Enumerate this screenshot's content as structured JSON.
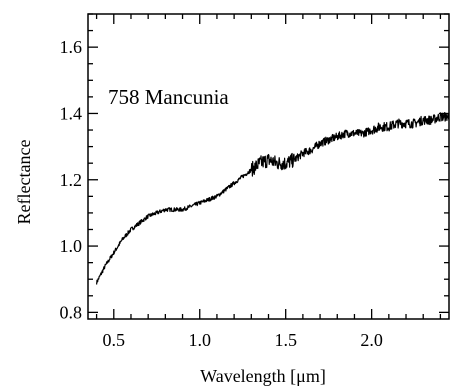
{
  "chart_data": {
    "type": "line",
    "title": "",
    "annotation": "758 Mancunia",
    "xlabel": "Wavelength [μm]",
    "ylabel": "Reflectance",
    "xlim": [
      0.35,
      2.45
    ],
    "ylim": [
      0.78,
      1.7
    ],
    "xticks": [
      0.5,
      1.0,
      1.5,
      2.0
    ],
    "xtick_labels": [
      "0.5",
      "1.0",
      "1.5",
      "2.0"
    ],
    "yticks": [
      0.8,
      1.0,
      1.2,
      1.4,
      1.6
    ],
    "ytick_labels": [
      "0.8",
      "1.0",
      "1.2",
      "1.4",
      "1.6"
    ],
    "grid": false,
    "series": [
      {
        "x": [
          0.4,
          0.45,
          0.5,
          0.55,
          0.6,
          0.65,
          0.7,
          0.75,
          0.8,
          0.85,
          0.9,
          0.95,
          1.0,
          1.05,
          1.1,
          1.15,
          1.2,
          1.25,
          1.3,
          1.35,
          1.4,
          1.45,
          1.5,
          1.55,
          1.6,
          1.65,
          1.7,
          1.75,
          1.8,
          1.85,
          1.9,
          1.95,
          2.0,
          2.05,
          2.1,
          2.15,
          2.2,
          2.25,
          2.3,
          2.35,
          2.4,
          2.45
        ],
        "y": [
          0.89,
          0.94,
          0.98,
          1.02,
          1.05,
          1.07,
          1.09,
          1.1,
          1.11,
          1.11,
          1.11,
          1.12,
          1.13,
          1.14,
          1.15,
          1.17,
          1.19,
          1.21,
          1.23,
          1.25,
          1.26,
          1.25,
          1.25,
          1.26,
          1.28,
          1.29,
          1.31,
          1.32,
          1.33,
          1.34,
          1.34,
          1.34,
          1.35,
          1.36,
          1.36,
          1.37,
          1.37,
          1.37,
          1.38,
          1.38,
          1.39,
          1.39
        ]
      }
    ]
  }
}
